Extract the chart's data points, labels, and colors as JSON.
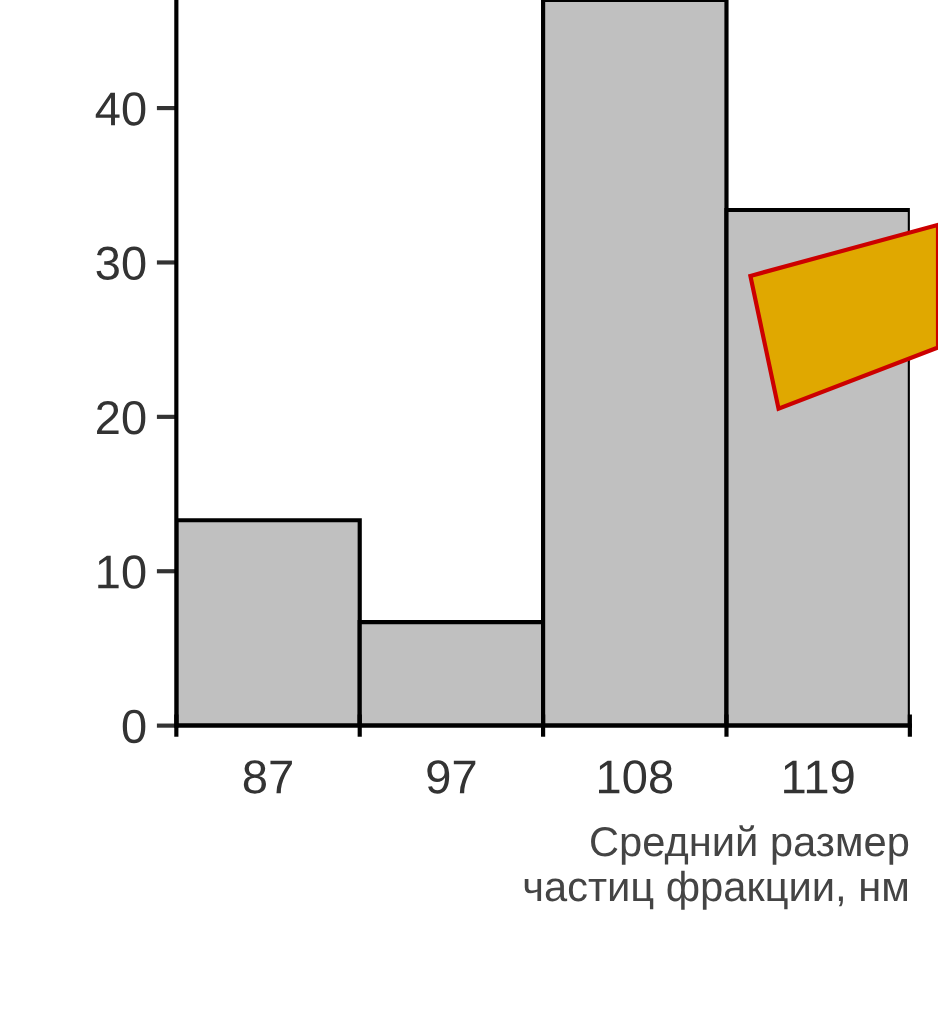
{
  "chart_data": {
    "type": "bar",
    "xlabel": "Средний размер\nчастиц фракции, нм",
    "categories": [
      "87",
      "97",
      "108",
      "119"
    ],
    "values": [
      13.3,
      6.7,
      47,
      33.4
    ],
    "color": "#c0c0c0",
    "ylim": [
      0,
      47
    ],
    "yticks": [
      0,
      10,
      20,
      30,
      40
    ],
    "grid": false
  }
}
